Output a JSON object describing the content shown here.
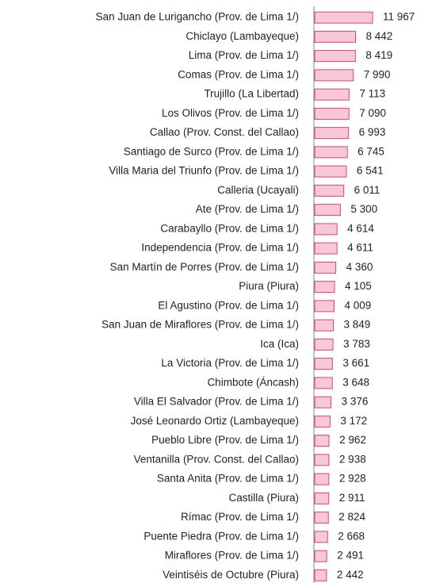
{
  "chart_data": {
    "type": "bar",
    "orientation": "horizontal",
    "categories": [
      "San Juan de Lurigancho (Prov. de Lima 1/)",
      "Chiclayo (Lambayeque)",
      "Lima (Prov. de Lima 1/)",
      "Comas (Prov. de Lima 1/)",
      "Trujillo (La Libertad)",
      "Los Olivos (Prov. de Lima 1/)",
      "Callao (Prov. Const. del Callao)",
      "Santiago de Surco (Prov. de Lima 1/)",
      "Villa Maria del Triunfo (Prov. de Lima 1/)",
      "Calleria (Ucayali)",
      "Ate (Prov. de Lima 1/)",
      "Carabayllo (Prov. de Lima 1/)",
      "Independencia (Prov. de Lima 1/)",
      "San Martín de Porres (Prov. de Lima 1/)",
      "Piura (Piura)",
      "El Agustino (Prov. de Lima 1/)",
      "San Juan de Miraflores (Prov. de Lima 1/)",
      "Ica (Ica)",
      "La Victoria (Prov. de Lima 1/)",
      "Chimbote (Áncash)",
      "Villa El Salvador (Prov. de Lima 1/)",
      "José Leonardo Ortiz (Lambayeque)",
      "Pueblo Libre (Prov. de Lima 1/)",
      "Ventanilla (Prov. Const. del Callao)",
      "Santa Anita (Prov. de Lima 1/)",
      "Castilla (Piura)",
      "Rímac (Prov. de Lima 1/)",
      "Puente Piedra (Prov. de Lima 1/)",
      "Miraflores (Prov. de Lima 1/)",
      "Veintiséis de Octubre (Piura)"
    ],
    "values": [
      11967,
      8442,
      8419,
      7990,
      7113,
      7090,
      6993,
      6745,
      6541,
      6011,
      5300,
      4614,
      4611,
      4360,
      4105,
      4009,
      3849,
      3783,
      3661,
      3648,
      3376,
      3172,
      2962,
      2938,
      2928,
      2911,
      2824,
      2668,
      2491,
      2442
    ],
    "value_labels": [
      "11 967",
      "8 442",
      "8 419",
      "7 990",
      "7 113",
      "7 090",
      "6 993",
      "6 745",
      "6 541",
      "6 011",
      "5 300",
      "4 614",
      "4 611",
      "4 360",
      "4 105",
      "4 009",
      "3 849",
      "3 783",
      "3 661",
      "3 648",
      "3 376",
      "3 172",
      "2 962",
      "2 938",
      "2 928",
      "2 911",
      "2 824",
      "2 668",
      "2 491",
      "2 442"
    ],
    "color": "#f8c8d8",
    "edge_color": "#e0407a"
  }
}
